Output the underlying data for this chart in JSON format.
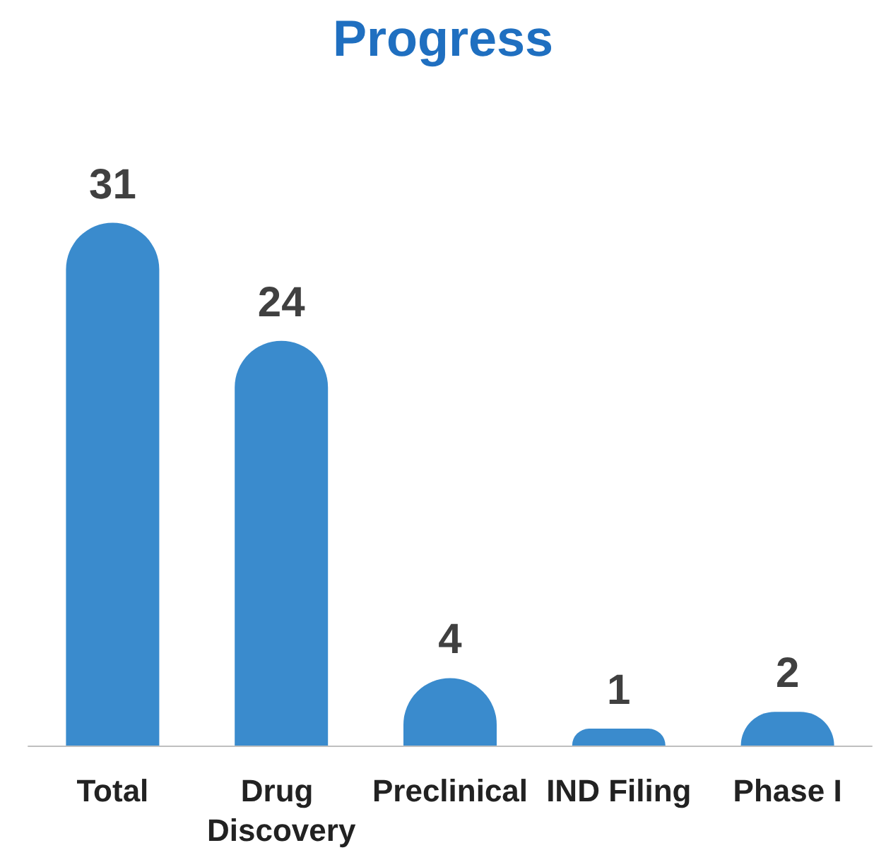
{
  "chart_data": {
    "type": "bar",
    "title": "Progress",
    "categories": [
      "Total",
      "Drug Discovery",
      "Preclinical",
      "IND Filing",
      "Phase I"
    ],
    "values": [
      31,
      24,
      4,
      1,
      2
    ],
    "color": "#3a8bcd",
    "data_labels": true
  }
}
